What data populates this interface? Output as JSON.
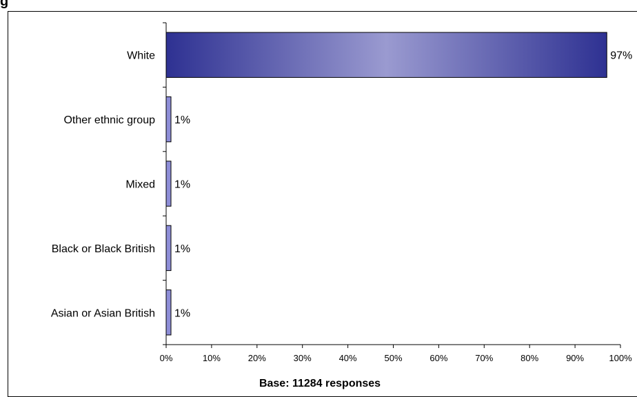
{
  "chart_data": {
    "type": "bar",
    "orientation": "horizontal",
    "title": "g",
    "categories": [
      "White",
      "Other ethnic group",
      "Mixed",
      "Black or Black British",
      "Asian or Asian British"
    ],
    "values": [
      97,
      1,
      1,
      1,
      1
    ],
    "value_labels": [
      "97%",
      "1%",
      "1%",
      "1%",
      "1%"
    ],
    "xlabel": "Base: 11284 responses",
    "ylabel": "",
    "xlim": [
      0,
      100
    ],
    "xticks": [
      "0%",
      "10%",
      "20%",
      "30%",
      "40%",
      "50%",
      "60%",
      "70%",
      "80%",
      "90%",
      "100%"
    ],
    "grid": false,
    "legend": "none",
    "bar_color": "#2E3192",
    "bar_highlight_color": "#9A9AD0",
    "small_bar_color": "#8E8ED8"
  }
}
